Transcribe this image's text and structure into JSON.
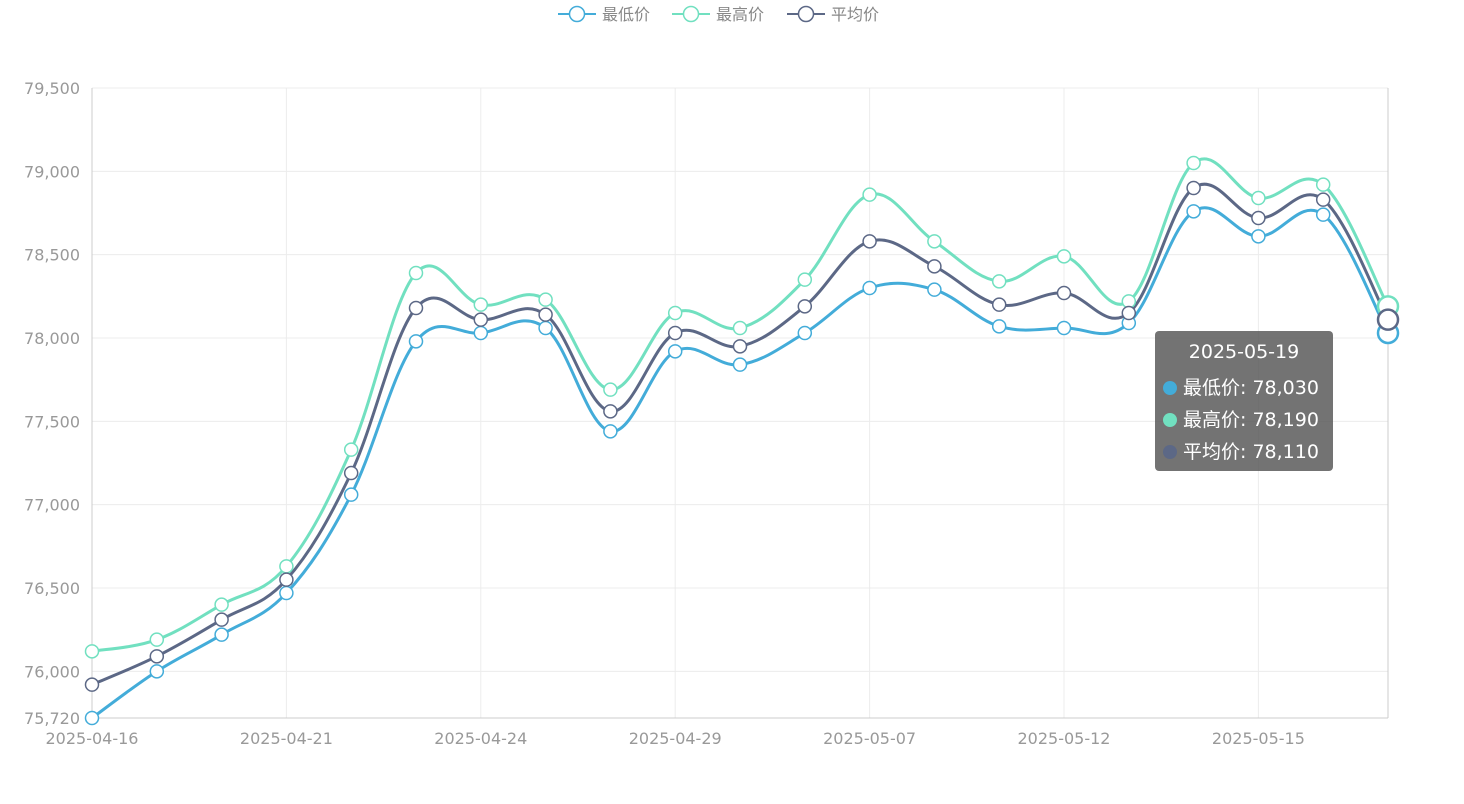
{
  "colors": {
    "low": "#43acd9",
    "high": "#71e0c0",
    "avg": "#5c6886"
  },
  "chart_data": {
    "type": "line",
    "smooth": true,
    "title": "",
    "xlabel": "",
    "ylabel": "",
    "legend_position": "top-center",
    "grid": true,
    "ylim": [
      75720,
      79500
    ],
    "yticks": [
      75720,
      76000,
      76500,
      77000,
      77500,
      78000,
      78500,
      79000,
      79500
    ],
    "ytick_labels": [
      "75,720",
      "76,000",
      "76,500",
      "77,000",
      "77,500",
      "78,000",
      "78,500",
      "79,000",
      "79,500"
    ],
    "x": [
      "2025-04-16",
      "2025-04-17",
      "2025-04-18",
      "2025-04-21",
      "2025-04-22",
      "2025-04-23",
      "2025-04-24",
      "2025-04-25",
      "2025-04-28",
      "2025-04-29",
      "2025-04-30",
      "2025-05-06",
      "2025-05-07",
      "2025-05-08",
      "2025-05-09",
      "2025-05-12",
      "2025-05-13",
      "2025-05-14",
      "2025-05-15",
      "2025-05-16",
      "2025-05-19"
    ],
    "x_tick_labels": [
      "2025-04-16",
      "2025-04-21",
      "2025-04-24",
      "2025-04-29",
      "2025-05-07",
      "2025-05-12",
      "2025-05-15"
    ],
    "series": [
      {
        "name": "最低价",
        "color_key": "low",
        "values": [
          75720,
          76000,
          76220,
          76470,
          77060,
          77980,
          78030,
          78060,
          77440,
          77920,
          77840,
          78030,
          78300,
          78290,
          78070,
          78060,
          78090,
          78760,
          78610,
          78740,
          78030
        ]
      },
      {
        "name": "最高价",
        "color_key": "high",
        "values": [
          76120,
          76190,
          76400,
          76630,
          77330,
          78390,
          78200,
          78230,
          77690,
          78150,
          78060,
          78350,
          78860,
          78580,
          78340,
          78490,
          78220,
          79050,
          78840,
          78920,
          78190
        ]
      },
      {
        "name": "平均价",
        "color_key": "avg",
        "values": [
          75920,
          76090,
          76310,
          76550,
          77190,
          78180,
          78110,
          78140,
          77560,
          78030,
          77950,
          78190,
          78580,
          78430,
          78200,
          78270,
          78150,
          78900,
          78720,
          78830,
          78110
        ]
      }
    ],
    "tooltip": {
      "title": "2025-05-19",
      "rows": [
        {
          "label": "最低价: 78,030",
          "color_key": "low"
        },
        {
          "label": "最高价: 78,190",
          "color_key": "high"
        },
        {
          "label": "平均价: 78,110",
          "color_key": "avg"
        }
      ]
    }
  }
}
